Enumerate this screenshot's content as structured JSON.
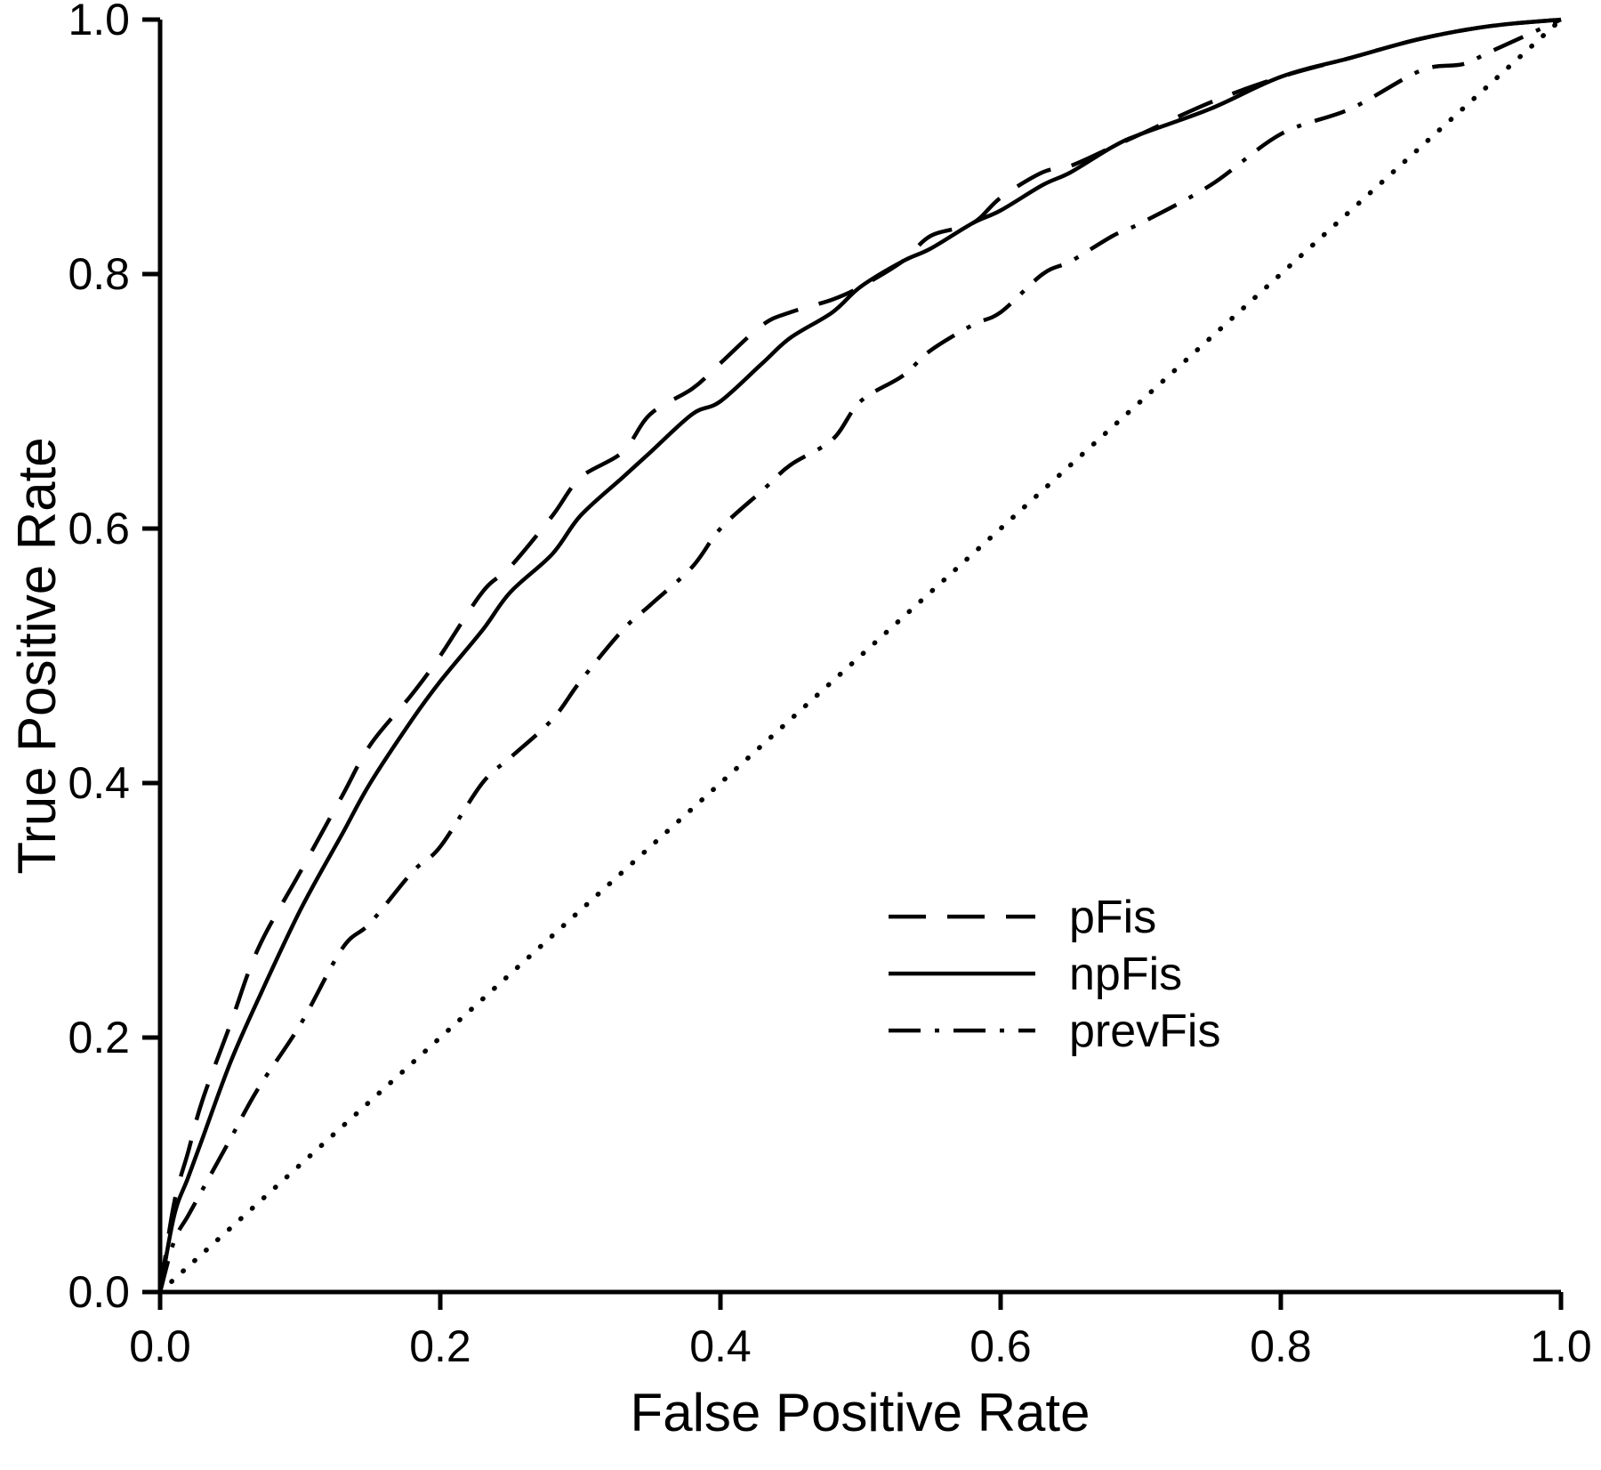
{
  "figure": {
    "background": "#ffffff",
    "ink_color": "#000000"
  },
  "chart_data": {
    "type": "line",
    "title": "",
    "xlabel": "False Positive Rate",
    "ylabel": "True Positive Rate",
    "xlim": [
      0,
      1
    ],
    "ylim": [
      0,
      1
    ],
    "grid": false,
    "legend_position": "inside lower-right",
    "xticks": {
      "values": [
        0,
        0.2,
        0.4,
        0.6,
        0.8,
        1.0
      ],
      "labels": [
        "0.0",
        "0.2",
        "0.4",
        "0.6",
        "0.8",
        "1.0"
      ]
    },
    "yticks": {
      "values": [
        0,
        0.2,
        0.4,
        0.6,
        0.8,
        1.0
      ],
      "labels": [
        "0.0",
        "0.2",
        "0.4",
        "0.6",
        "0.8",
        "1.0"
      ]
    },
    "series": [
      {
        "name": "pFis",
        "style": "dashed",
        "legend": true,
        "points": [
          [
            0,
            0
          ],
          [
            0.01,
            0.07
          ],
          [
            0.02,
            0.11
          ],
          [
            0.03,
            0.15
          ],
          [
            0.05,
            0.21
          ],
          [
            0.07,
            0.27
          ],
          [
            0.1,
            0.33
          ],
          [
            0.13,
            0.39
          ],
          [
            0.15,
            0.43
          ],
          [
            0.18,
            0.47
          ],
          [
            0.2,
            0.5
          ],
          [
            0.23,
            0.55
          ],
          [
            0.25,
            0.57
          ],
          [
            0.28,
            0.61
          ],
          [
            0.3,
            0.64
          ],
          [
            0.33,
            0.66
          ],
          [
            0.35,
            0.69
          ],
          [
            0.38,
            0.71
          ],
          [
            0.4,
            0.73
          ],
          [
            0.43,
            0.76
          ],
          [
            0.45,
            0.77
          ],
          [
            0.48,
            0.78
          ],
          [
            0.5,
            0.79
          ],
          [
            0.53,
            0.81
          ],
          [
            0.55,
            0.83
          ],
          [
            0.58,
            0.84
          ],
          [
            0.6,
            0.86
          ],
          [
            0.63,
            0.88
          ],
          [
            0.65,
            0.885
          ],
          [
            0.68,
            0.9
          ],
          [
            0.7,
            0.91
          ],
          [
            0.75,
            0.935
          ],
          [
            0.8,
            0.955
          ],
          [
            0.85,
            0.97
          ],
          [
            0.9,
            0.985
          ],
          [
            0.95,
            0.995
          ],
          [
            1,
            1
          ]
        ]
      },
      {
        "name": "npFis",
        "style": "solid",
        "legend": true,
        "points": [
          [
            0,
            0
          ],
          [
            0.01,
            0.06
          ],
          [
            0.02,
            0.09
          ],
          [
            0.03,
            0.12
          ],
          [
            0.05,
            0.18
          ],
          [
            0.07,
            0.23
          ],
          [
            0.1,
            0.3
          ],
          [
            0.13,
            0.36
          ],
          [
            0.15,
            0.4
          ],
          [
            0.18,
            0.45
          ],
          [
            0.2,
            0.48
          ],
          [
            0.23,
            0.52
          ],
          [
            0.25,
            0.55
          ],
          [
            0.28,
            0.58
          ],
          [
            0.3,
            0.61
          ],
          [
            0.33,
            0.64
          ],
          [
            0.35,
            0.66
          ],
          [
            0.38,
            0.69
          ],
          [
            0.4,
            0.7
          ],
          [
            0.43,
            0.73
          ],
          [
            0.45,
            0.75
          ],
          [
            0.48,
            0.77
          ],
          [
            0.5,
            0.79
          ],
          [
            0.53,
            0.81
          ],
          [
            0.55,
            0.82
          ],
          [
            0.58,
            0.84
          ],
          [
            0.6,
            0.85
          ],
          [
            0.63,
            0.87
          ],
          [
            0.65,
            0.88
          ],
          [
            0.68,
            0.9
          ],
          [
            0.7,
            0.91
          ],
          [
            0.75,
            0.93
          ],
          [
            0.8,
            0.955
          ],
          [
            0.85,
            0.97
          ],
          [
            0.9,
            0.985
          ],
          [
            0.95,
            0.995
          ],
          [
            1,
            1
          ]
        ]
      },
      {
        "name": "prevFis",
        "style": "dashdot",
        "legend": true,
        "points": [
          [
            0,
            0
          ],
          [
            0.01,
            0.04
          ],
          [
            0.02,
            0.06
          ],
          [
            0.03,
            0.08
          ],
          [
            0.05,
            0.12
          ],
          [
            0.07,
            0.16
          ],
          [
            0.1,
            0.21
          ],
          [
            0.13,
            0.27
          ],
          [
            0.15,
            0.29
          ],
          [
            0.18,
            0.33
          ],
          [
            0.2,
            0.35
          ],
          [
            0.23,
            0.4
          ],
          [
            0.25,
            0.42
          ],
          [
            0.28,
            0.45
          ],
          [
            0.3,
            0.48
          ],
          [
            0.33,
            0.52
          ],
          [
            0.35,
            0.54
          ],
          [
            0.38,
            0.57
          ],
          [
            0.4,
            0.6
          ],
          [
            0.43,
            0.63
          ],
          [
            0.45,
            0.65
          ],
          [
            0.48,
            0.67
          ],
          [
            0.5,
            0.7
          ],
          [
            0.53,
            0.72
          ],
          [
            0.55,
            0.74
          ],
          [
            0.58,
            0.76
          ],
          [
            0.6,
            0.77
          ],
          [
            0.63,
            0.8
          ],
          [
            0.65,
            0.81
          ],
          [
            0.68,
            0.83
          ],
          [
            0.7,
            0.84
          ],
          [
            0.75,
            0.87
          ],
          [
            0.8,
            0.91
          ],
          [
            0.85,
            0.93
          ],
          [
            0.9,
            0.96
          ],
          [
            0.93,
            0.965
          ],
          [
            0.95,
            0.975
          ],
          [
            1,
            1
          ]
        ]
      },
      {
        "name": "chance",
        "style": "dotted",
        "legend": false,
        "points": [
          [
            0,
            0
          ],
          [
            1,
            1
          ]
        ]
      }
    ]
  }
}
